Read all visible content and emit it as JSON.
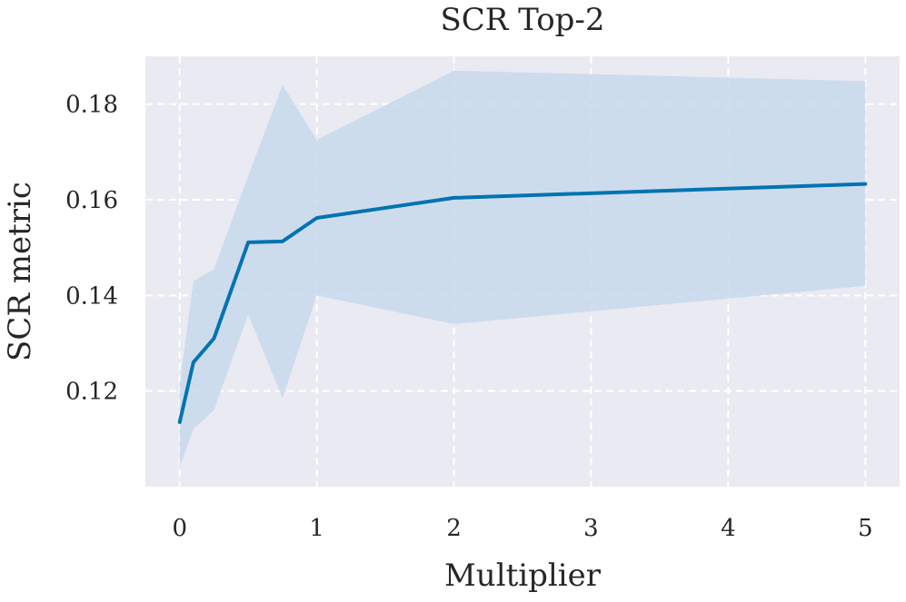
{
  "chart_data": {
    "type": "line",
    "title": "SCR Top-2",
    "xlabel": "Multiplier",
    "ylabel": "SCR metric",
    "xlim": [
      -0.25,
      5.25
    ],
    "ylim": [
      0.1,
      0.19
    ],
    "xticks": [
      0,
      1,
      2,
      3,
      4,
      5
    ],
    "xtick_labels": [
      "0",
      "1",
      "2",
      "3",
      "4",
      "5"
    ],
    "yticks": [
      0.12,
      0.14,
      0.16,
      0.18
    ],
    "ytick_labels": [
      "0.12",
      "0.14",
      "0.16",
      "0.18"
    ],
    "grid": true,
    "grid_style": "dashed",
    "series": [
      {
        "x": [
          0,
          0.1,
          0.25,
          0.5,
          0.75,
          1,
          2,
          5
        ],
        "y": [
          0.1135,
          0.126,
          0.131,
          0.1511,
          0.1513,
          0.1562,
          0.1604,
          0.1633
        ],
        "lower": [
          0.104,
          0.112,
          0.116,
          0.136,
          0.1185,
          0.14,
          0.134,
          0.142
        ],
        "upper": [
          0.1215,
          0.143,
          0.1455,
          0.165,
          0.184,
          0.1725,
          0.187,
          0.1848
        ]
      }
    ]
  },
  "colors": {
    "line": "#0173b2",
    "band": "#c8d9ec",
    "plot_background": "#eaeaf2",
    "grid": "#ffffff"
  }
}
